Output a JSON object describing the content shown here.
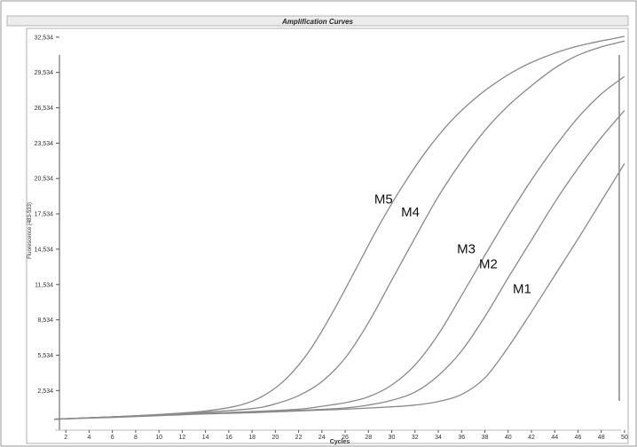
{
  "chart_data": {
    "type": "line",
    "title": "Amplification Curves",
    "xlabel": "Cycles",
    "ylabel": "Fluorescence (483-533)",
    "xlim": [
      0.5,
      50.5
    ],
    "ylim": [
      -0.5,
      33500
    ],
    "xticks": [
      2,
      4,
      6,
      8,
      10,
      12,
      14,
      16,
      18,
      20,
      22,
      24,
      26,
      28,
      30,
      32,
      34,
      36,
      38,
      40,
      42,
      44,
      46,
      48,
      50
    ],
    "yticks": [
      2534,
      5534,
      8534,
      11534,
      14534,
      17534,
      20534,
      23534,
      26534,
      29534,
      32534
    ],
    "ytick_labels": [
      "2,534",
      "5,534",
      "8,534",
      "11,534",
      "14,534",
      "17,534",
      "20,534",
      "23,534",
      "26,534",
      "29,534",
      "32,534"
    ],
    "grid": false,
    "legend": "none",
    "line_color": "#8a8a8a",
    "series": [
      {
        "name": "M5",
        "x": [
          1,
          6,
          10,
          14,
          17,
          19,
          21,
          23,
          25,
          27,
          29,
          31,
          33,
          35,
          37,
          39,
          41,
          43,
          45,
          47,
          49,
          50
        ],
        "y": [
          100,
          300,
          500,
          800,
          1300,
          2100,
          3600,
          6000,
          9300,
          13000,
          16700,
          20000,
          22900,
          25300,
          27200,
          28700,
          29900,
          30800,
          31500,
          32000,
          32400,
          32600
        ]
      },
      {
        "name": "M4",
        "x": [
          1,
          6,
          10,
          14,
          18,
          20,
          22,
          24,
          26,
          28,
          30,
          32,
          34,
          36,
          38,
          40,
          42,
          44,
          46,
          48,
          50
        ],
        "y": [
          100,
          300,
          500,
          700,
          1000,
          1400,
          2100,
          3300,
          5300,
          8300,
          11900,
          15500,
          19000,
          22000,
          24600,
          26700,
          28400,
          29900,
          31000,
          31700,
          32200
        ]
      },
      {
        "name": "M3",
        "x": [
          1,
          6,
          10,
          14,
          18,
          22,
          24,
          26,
          28,
          30,
          32,
          34,
          36,
          38,
          40,
          42,
          44,
          46,
          48,
          50
        ],
        "y": [
          100,
          300,
          450,
          600,
          750,
          950,
          1200,
          1500,
          2000,
          3000,
          4700,
          7300,
          10600,
          14000,
          17300,
          20400,
          23200,
          25700,
          27700,
          29200
        ]
      },
      {
        "name": "M2",
        "x": [
          1,
          6,
          10,
          14,
          18,
          22,
          26,
          28,
          30,
          32,
          34,
          36,
          38,
          40,
          42,
          44,
          46,
          48,
          50
        ],
        "y": [
          100,
          300,
          450,
          600,
          700,
          850,
          1050,
          1300,
          1700,
          2400,
          3800,
          5900,
          8800,
          12100,
          15300,
          18500,
          21400,
          24000,
          26300
        ]
      },
      {
        "name": "M1",
        "x": [
          1,
          6,
          10,
          14,
          18,
          22,
          26,
          30,
          32,
          34,
          36,
          38,
          40,
          42,
          44,
          46,
          48,
          50
        ],
        "y": [
          100,
          250,
          400,
          550,
          650,
          800,
          950,
          1150,
          1300,
          1600,
          2200,
          3600,
          6200,
          9200,
          12300,
          15400,
          18600,
          21800
        ]
      }
    ],
    "annotations": [
      {
        "text": "M5",
        "x": 29.3,
        "y": 18400
      },
      {
        "text": "M4",
        "x": 31.6,
        "y": 17300
      },
      {
        "text": "M3",
        "x": 36.4,
        "y": 14200
      },
      {
        "text": "M2",
        "x": 38.3,
        "y": 12900
      },
      {
        "text": "M1",
        "x": 41.2,
        "y": 10800
      }
    ]
  }
}
